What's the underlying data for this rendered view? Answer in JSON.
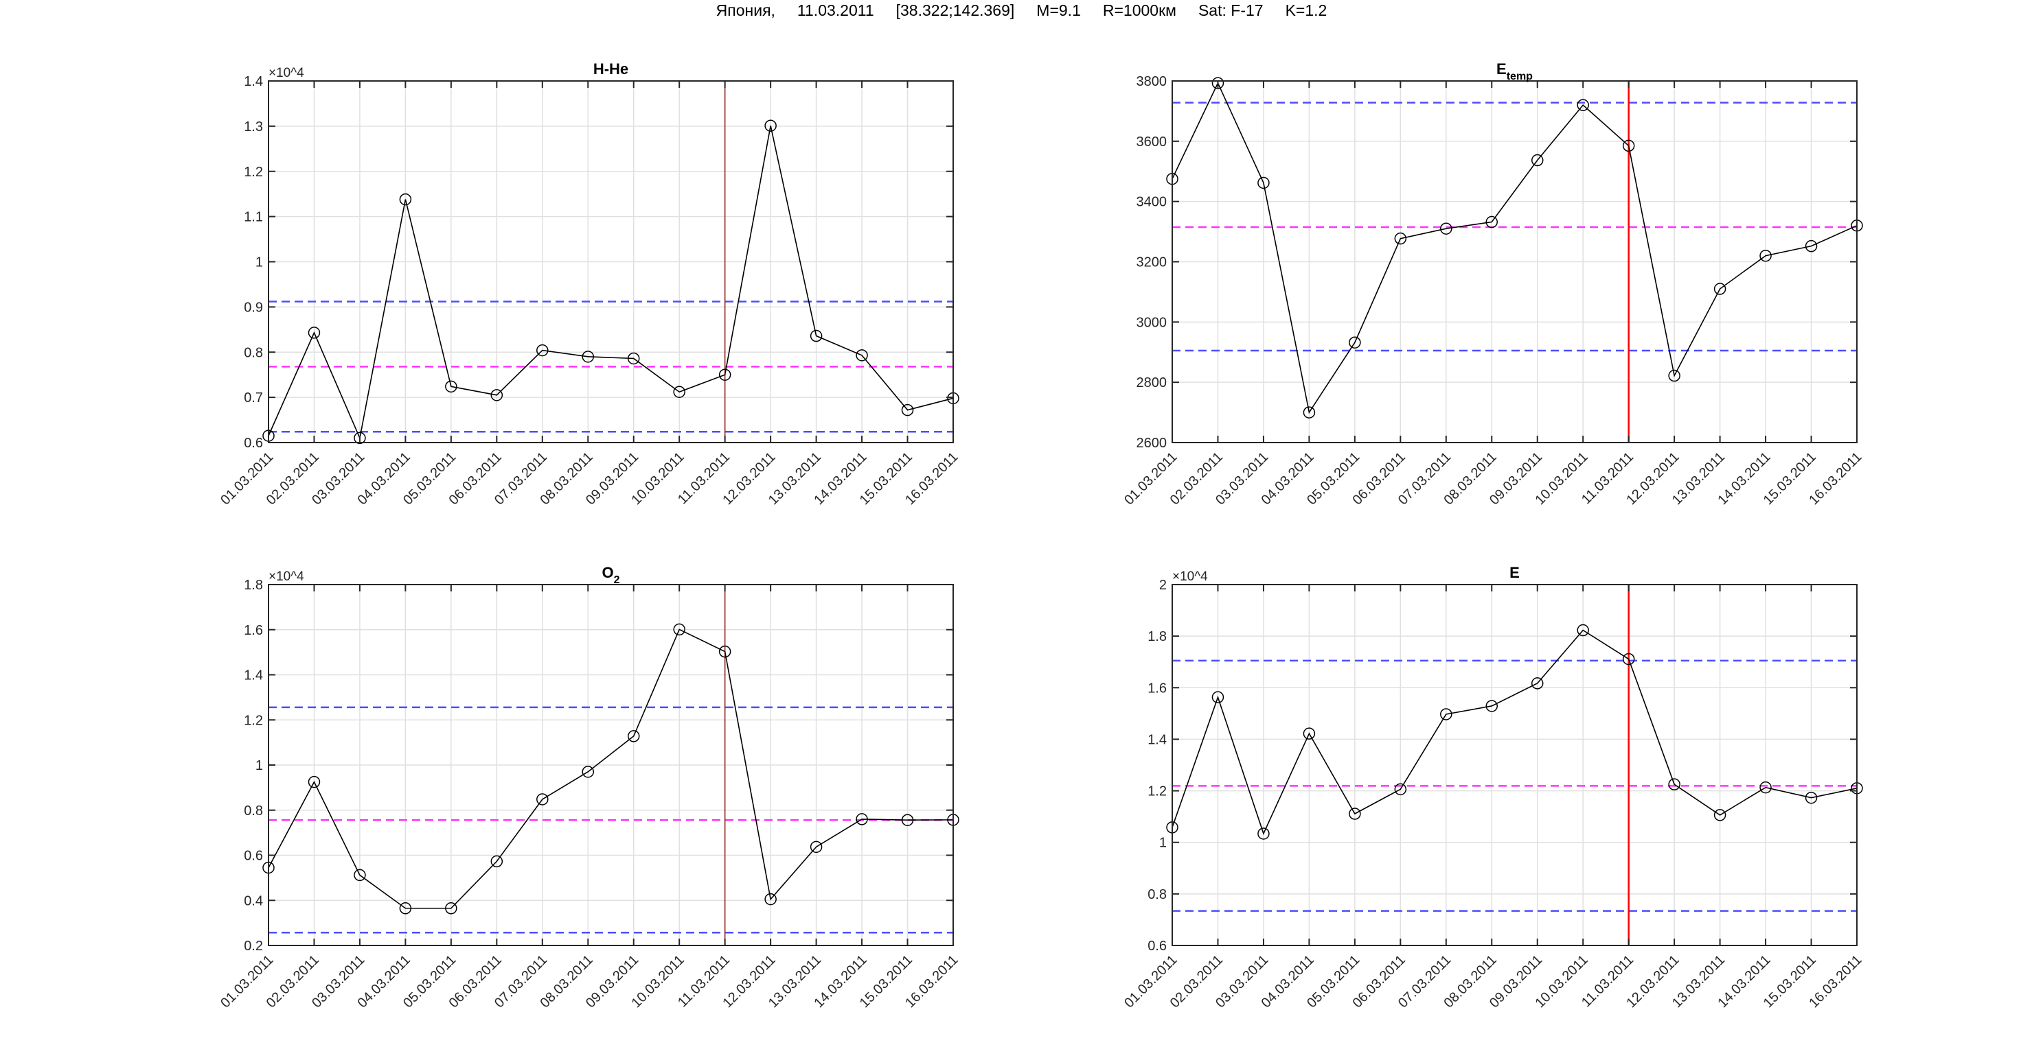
{
  "suptitle": {
    "country": "Япония,",
    "date": "11.03.2011",
    "coords": "[38.322;142.369]",
    "magnitude": "M=9.1",
    "radius": "R=1000км",
    "satellite": "Sat: F-17",
    "k": "K=1.2"
  },
  "colors": {
    "series": "#000000",
    "threshold": "#4d4dff",
    "mean": "#ff33ff",
    "event_line": "#ff0000",
    "event_line_hhe": "#8b2020",
    "grid": "#e0e0e0"
  },
  "chart_data": [
    {
      "type": "line",
      "title": "H-He",
      "title_sub": "",
      "exponent": "×10^4",
      "exp_base": "×10",
      "exp_power": "4",
      "categories": [
        "01.03.2011",
        "02.03.2011",
        "03.03.2011",
        "04.03.2011",
        "05.03.2011",
        "06.03.2011",
        "07.03.2011",
        "08.03.2011",
        "09.03.2011",
        "10.03.2011",
        "11.03.2011",
        "12.03.2011",
        "13.03.2011",
        "14.03.2011",
        "15.03.2011",
        "16.03.2011"
      ],
      "values": [
        0.615,
        0.843,
        0.61,
        1.138,
        0.724,
        0.705,
        0.804,
        0.79,
        0.786,
        0.712,
        0.75,
        1.301,
        0.836,
        0.793,
        0.672,
        0.698
      ],
      "ylim": [
        0.6,
        1.4
      ],
      "yticks": [
        0.6,
        0.7,
        0.8,
        0.9,
        1,
        1.1,
        1.2,
        1.3,
        1.4
      ],
      "upper_threshold": 0.912,
      "lower_threshold": 0.624,
      "mean": 0.768,
      "event_date": "11.03.2011",
      "grid": true,
      "markers": "circle"
    },
    {
      "type": "line",
      "title": "E",
      "title_sub": "temp",
      "exponent": "",
      "exp_base": "",
      "exp_power": "",
      "categories": [
        "01.03.2011",
        "02.03.2011",
        "03.03.2011",
        "04.03.2011",
        "05.03.2011",
        "06.03.2011",
        "07.03.2011",
        "08.03.2011",
        "09.03.2011",
        "10.03.2011",
        "11.03.2011",
        "12.03.2011",
        "13.03.2011",
        "14.03.2011",
        "15.03.2011",
        "16.03.2011"
      ],
      "values": [
        3475,
        3793,
        3462,
        2700,
        2932,
        3277,
        3310,
        3332,
        3537,
        3720,
        3585,
        2822,
        3110,
        3220,
        3252,
        3320
      ],
      "ylim": [
        2600,
        3800
      ],
      "yticks": [
        2600,
        2800,
        3000,
        3200,
        3400,
        3600,
        3800
      ],
      "upper_threshold": 3728,
      "lower_threshold": 2905,
      "mean": 3315,
      "event_date": "11.03.2011",
      "grid": true,
      "markers": "circle"
    },
    {
      "type": "line",
      "title": "O",
      "title_sub": "2",
      "exponent": "×10^4",
      "exp_base": "×10",
      "exp_power": "4",
      "categories": [
        "01.03.2011",
        "02.03.2011",
        "03.03.2011",
        "04.03.2011",
        "05.03.2011",
        "06.03.2011",
        "07.03.2011",
        "08.03.2011",
        "09.03.2011",
        "10.03.2011",
        "11.03.2011",
        "12.03.2011",
        "13.03.2011",
        "14.03.2011",
        "15.03.2011",
        "16.03.2011"
      ],
      "values": [
        0.545,
        0.925,
        0.512,
        0.365,
        0.365,
        0.573,
        0.848,
        0.97,
        1.128,
        1.601,
        1.503,
        0.405,
        0.637,
        0.76,
        0.756,
        0.757
      ],
      "ylim": [
        0.2,
        1.8
      ],
      "yticks": [
        0.2,
        0.4,
        0.6,
        0.8,
        1,
        1.2,
        1.4,
        1.6,
        1.8
      ],
      "upper_threshold": 1.256,
      "lower_threshold": 0.257,
      "mean": 0.756,
      "event_date": "11.03.2011",
      "grid": true,
      "markers": "circle"
    },
    {
      "type": "line",
      "title": "E",
      "title_sub": "",
      "exponent": "×10^4",
      "exp_base": "×10",
      "exp_power": "4",
      "categories": [
        "01.03.2011",
        "02.03.2011",
        "03.03.2011",
        "04.03.2011",
        "05.03.2011",
        "06.03.2011",
        "07.03.2011",
        "08.03.2011",
        "09.03.2011",
        "10.03.2011",
        "11.03.2011",
        "12.03.2011",
        "13.03.2011",
        "14.03.2011",
        "15.03.2011",
        "16.03.2011"
      ],
      "values": [
        1.058,
        1.563,
        1.034,
        1.422,
        1.111,
        1.206,
        1.497,
        1.529,
        1.617,
        1.823,
        1.711,
        1.225,
        1.106,
        1.213,
        1.173,
        1.21
      ],
      "ylim": [
        0.6,
        2
      ],
      "yticks": [
        0.6,
        0.8,
        1,
        1.2,
        1.4,
        1.6,
        1.8,
        2
      ],
      "upper_threshold": 1.705,
      "lower_threshold": 0.734,
      "mean": 1.219,
      "event_date": "11.03.2011",
      "grid": true,
      "markers": "circle"
    }
  ]
}
